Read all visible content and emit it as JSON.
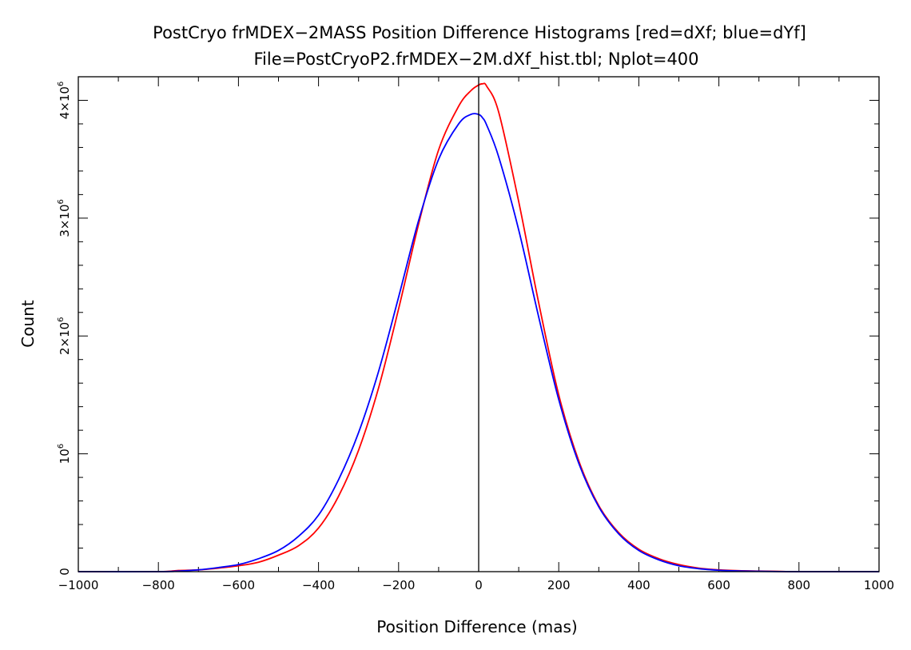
{
  "chart_data": {
    "type": "line",
    "title": "PostCryo frMDEX−2MASS Position Difference Histograms [red=dXf; blue=dYf]",
    "subtitle": "File=PostCryoP2.frMDEX−2M.dXf_hist.tbl; Nplot=400",
    "xlabel": "Position Difference (mas)",
    "ylabel": "Count",
    "xlim": [
      -1000,
      1000
    ],
    "ylim": [
      0,
      4200000
    ],
    "grid": false,
    "x_ticks": [
      {
        "value": -1000,
        "label": "−1000"
      },
      {
        "value": -800,
        "label": "−800"
      },
      {
        "value": -600,
        "label": "−600"
      },
      {
        "value": -400,
        "label": "−400"
      },
      {
        "value": -200,
        "label": "−200"
      },
      {
        "value": 0,
        "label": "0"
      },
      {
        "value": 200,
        "label": "200"
      },
      {
        "value": 400,
        "label": "400"
      },
      {
        "value": 600,
        "label": "600"
      },
      {
        "value": 800,
        "label": "800"
      },
      {
        "value": 1000,
        "label": "1000"
      }
    ],
    "y_ticks": [
      {
        "value": 0,
        "base": "0",
        "exp": ""
      },
      {
        "value": 1000000,
        "base": "10",
        "exp": "6"
      },
      {
        "value": 2000000,
        "base": "2×10",
        "exp": "6"
      },
      {
        "value": 3000000,
        "base": "3×10",
        "exp": "6"
      },
      {
        "value": 4000000,
        "base": "4×10",
        "exp": "6"
      }
    ],
    "series": [
      {
        "color": "#ff0000",
        "x": [
          -1000,
          -800,
          -750,
          -700,
          -650,
          -600,
          -550,
          -500,
          -450,
          -400,
          -350,
          -300,
          -250,
          -200,
          -150,
          -100,
          -50,
          -20,
          0,
          10,
          20,
          50,
          100,
          150,
          200,
          250,
          300,
          350,
          400,
          450,
          500,
          550,
          600,
          650,
          700,
          750,
          800,
          1000
        ],
        "y": [
          0,
          0,
          10000,
          15000,
          30000,
          50000,
          80000,
          140000,
          220000,
          370000,
          640000,
          1030000,
          1560000,
          2230000,
          2950000,
          3580000,
          3950000,
          4080000,
          4130000,
          4140000,
          4120000,
          3900000,
          3140000,
          2280000,
          1500000,
          940000,
          560000,
          330000,
          190000,
          110000,
          60000,
          30000,
          15000,
          8000,
          5000,
          2000,
          0,
          0
        ]
      },
      {
        "color": "#0000ff",
        "x": [
          -1000,
          -800,
          -750,
          -700,
          -650,
          -600,
          -550,
          -500,
          -450,
          -400,
          -350,
          -300,
          -250,
          -200,
          -150,
          -100,
          -50,
          -20,
          0,
          10,
          20,
          50,
          100,
          150,
          200,
          250,
          300,
          350,
          400,
          450,
          500,
          550,
          600,
          650,
          700,
          750,
          800,
          1000
        ],
        "y": [
          0,
          0,
          5000,
          15000,
          35000,
          60000,
          110000,
          180000,
          300000,
          480000,
          780000,
          1180000,
          1700000,
          2330000,
          2980000,
          3500000,
          3800000,
          3880000,
          3880000,
          3850000,
          3790000,
          3520000,
          2900000,
          2160000,
          1460000,
          920000,
          550000,
          320000,
          180000,
          100000,
          50000,
          25000,
          12000,
          6000,
          3000,
          1000,
          0,
          0
        ]
      }
    ]
  }
}
